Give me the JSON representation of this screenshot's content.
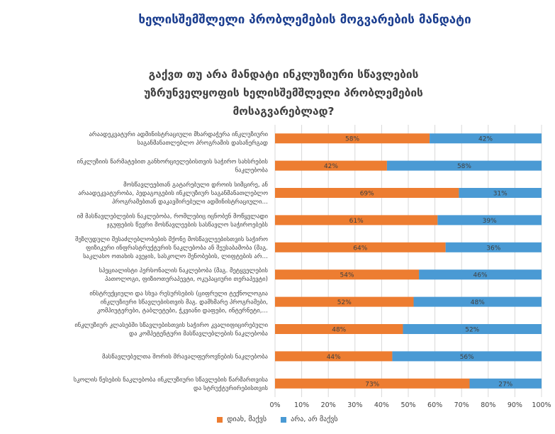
{
  "slide": {
    "title": "ხელისშემშლელი პრობლემების მოგვარების მანდატი"
  },
  "colors": {
    "yes": "#ED7D31",
    "no": "#4A9AD4",
    "title": "#1a3d8f",
    "grid": "#d9d9d9"
  },
  "chart_data": {
    "type": "bar",
    "orientation": "horizontal",
    "stacked": "percent",
    "title": "გაქვთ თუ არა მანდატი ინკლუზიური სწავლების უზრუნველყოფის ხელისშემშლელი პრობლემების მოსაგვარებლად?",
    "title_lines": [
      "გაქვთ თუ არა მანდატი ინკლუზიური სწავლების",
      "უზრუნველყოფის ხელისშემშლელი პრობლემების",
      "მოსაგვარებლად?"
    ],
    "categories": [
      [
        "არაადეკვატური ადმინისტრაციული მხარდაჭერა ინკლუზიური",
        "საგანმანათლებლო პროგრამის დასანერგად"
      ],
      [
        "ინკლუზიის წარმატებით განხორციელებისთვის საჭირო სახსრების",
        "ნაკლებობა"
      ],
      [
        "მოსწავლეებთან გატარებული დროის სიმცირე, ან",
        "არაადეკვატურობა, პედაგოგების ინკლუზიურ საგანმანათლებლო",
        "პროგრამებთან დაკავშირებული ადმინისტრაციული…"
      ],
      [
        "იმ მასწავლებლების ნაკლებობა, რომლებიც იცნობენ მოწყვლადი",
        "ჯგუფების წევრი მოსწავლეების სასწავლო საჭიროებებს"
      ],
      [
        "შეზღუდული შესაძლებლობების მქონე მოსწავლეებისთვის საჭირო",
        "ფიზიკური ინფრასტრუქტურის ნაკლებობა ან შეუსაბამობა (მაგ.",
        "საკლასო ოთახის ავეჯის, სასკოლო შენობების, ლიფტების არ…"
      ],
      [
        "სპეციალისტი პერსონალის ნაკლებობა (მაგ. მეტყველების",
        "პათოლოგი, ფიზიოთერაპევტი, ოკუპაციური თერაპევტი)"
      ],
      [
        "ინსტრუქციული და სხვა რესურსების (ციფრული ტექნოლოგია",
        "ინკლუზიური სწავლებისთვის მაგ. დამხმარე პროგრამები,",
        "კომპიუტერები, ტაბლეტები, ჭკვიანი დაფები, ინტერნეტი,…"
      ],
      [
        "ინკლუზიურ კლასებში სწავლებისთვის საჭირო კვალიფიცირებული",
        "და კომპეტენტური მასწავლებლების ნაკლებობა"
      ],
      [
        "მასწავლებელთა შორის მრავალფეროვნების ნაკლებობა"
      ],
      [
        "სკოლის წესების ნაკლებობა ინკლუზიური სწავლების წარმართვისა",
        "და სტრუქტურირებისთვის"
      ]
    ],
    "series": [
      {
        "name": "დიახ, მაქვს",
        "values": [
          58,
          42,
          69,
          61,
          64,
          54,
          52,
          48,
          44,
          73
        ],
        "labels": [
          "58%",
          "42%",
          "69%",
          "61%",
          "64%",
          "54%",
          "52%",
          "48%",
          "44%",
          "73%"
        ]
      },
      {
        "name": "არა, არ მაქვს",
        "values": [
          42,
          58,
          31,
          39,
          36,
          46,
          48,
          52,
          56,
          27
        ],
        "labels": [
          "42%",
          "58%",
          "31%",
          "39%",
          "36%",
          "46%",
          "48%",
          "52%",
          "56%",
          "27%"
        ]
      }
    ],
    "x_ticks": [
      "0%",
      "10%",
      "20%",
      "30%",
      "40%",
      "50%",
      "60%",
      "70%",
      "80%",
      "90%",
      "100%"
    ],
    "xlim": [
      0,
      100
    ],
    "grid": true,
    "legend_position": "bottom"
  }
}
